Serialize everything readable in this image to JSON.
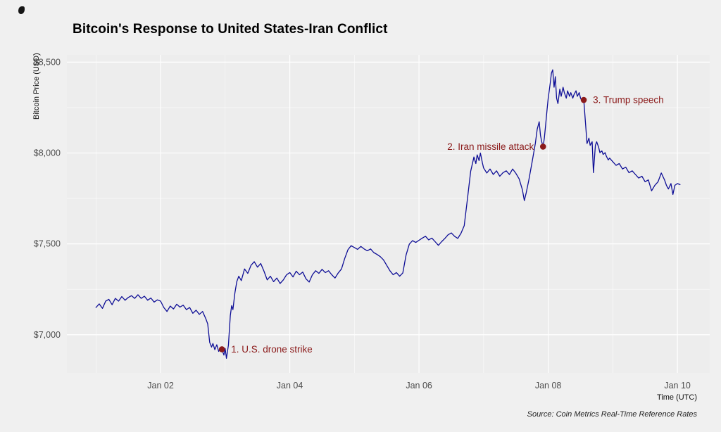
{
  "chart_data": {
    "type": "line",
    "title": "Bitcoin's Response to United States-Iran Conflict",
    "xlabel": "Time (UTC)",
    "ylabel": "Bitcoin Price (USD)",
    "caption": "Source: Coin Metrics Real-Time Reference Rates",
    "x_domain": [
      0.55,
      10.5
    ],
    "y_domain": [
      6790,
      8540
    ],
    "x_ticks": [
      {
        "value": 2,
        "label": "Jan 02"
      },
      {
        "value": 4,
        "label": "Jan 04"
      },
      {
        "value": 6,
        "label": "Jan 06"
      },
      {
        "value": 8,
        "label": "Jan 08"
      },
      {
        "value": 10,
        "label": "Jan 10"
      }
    ],
    "x_minor_ticks": [
      1,
      3,
      5,
      7,
      9
    ],
    "y_ticks": [
      {
        "value": 7000,
        "label": "$7,000"
      },
      {
        "value": 7500,
        "label": "$7,500"
      },
      {
        "value": 8000,
        "label": "$8,000"
      },
      {
        "value": 8500,
        "label": "$8,500"
      }
    ],
    "y_minor_ticks": [
      7250,
      7750,
      8250
    ],
    "grid": true,
    "legend": "none",
    "panel_color": "#EDEDED",
    "grid_color": "#FFFFFF",
    "tick_label_color": "#4D4D4D",
    "line_color": "#0E0E96",
    "annotation_color": "#8B1A1A",
    "series": [
      {
        "name": "Bitcoin price (USD)",
        "points": [
          [
            1.0,
            7150
          ],
          [
            1.05,
            7170
          ],
          [
            1.1,
            7145
          ],
          [
            1.15,
            7185
          ],
          [
            1.2,
            7195
          ],
          [
            1.25,
            7165
          ],
          [
            1.3,
            7200
          ],
          [
            1.35,
            7185
          ],
          [
            1.4,
            7210
          ],
          [
            1.45,
            7190
          ],
          [
            1.5,
            7205
          ],
          [
            1.55,
            7215
          ],
          [
            1.6,
            7200
          ],
          [
            1.65,
            7220
          ],
          [
            1.7,
            7200
          ],
          [
            1.75,
            7212
          ],
          [
            1.8,
            7190
          ],
          [
            1.85,
            7202
          ],
          [
            1.9,
            7180
          ],
          [
            1.95,
            7192
          ],
          [
            2.0,
            7185
          ],
          [
            2.05,
            7150
          ],
          [
            2.1,
            7128
          ],
          [
            2.15,
            7158
          ],
          [
            2.2,
            7142
          ],
          [
            2.25,
            7168
          ],
          [
            2.3,
            7152
          ],
          [
            2.35,
            7163
          ],
          [
            2.4,
            7138
          ],
          [
            2.45,
            7150
          ],
          [
            2.5,
            7118
          ],
          [
            2.55,
            7135
          ],
          [
            2.6,
            7112
          ],
          [
            2.65,
            7128
          ],
          [
            2.7,
            7088
          ],
          [
            2.73,
            7060
          ],
          [
            2.76,
            6958
          ],
          [
            2.79,
            6932
          ],
          [
            2.81,
            6952
          ],
          [
            2.84,
            6918
          ],
          [
            2.87,
            6945
          ],
          [
            2.9,
            6908
          ],
          [
            2.93,
            6930
          ],
          [
            2.95,
            6920
          ],
          [
            2.98,
            6888
          ],
          [
            3.0,
            6924
          ],
          [
            3.02,
            6870
          ],
          [
            3.05,
            6942
          ],
          [
            3.08,
            7105
          ],
          [
            3.1,
            7160
          ],
          [
            3.12,
            7138
          ],
          [
            3.15,
            7230
          ],
          [
            3.18,
            7292
          ],
          [
            3.21,
            7322
          ],
          [
            3.25,
            7298
          ],
          [
            3.3,
            7362
          ],
          [
            3.35,
            7338
          ],
          [
            3.4,
            7382
          ],
          [
            3.45,
            7402
          ],
          [
            3.5,
            7372
          ],
          [
            3.55,
            7392
          ],
          [
            3.6,
            7350
          ],
          [
            3.65,
            7302
          ],
          [
            3.7,
            7322
          ],
          [
            3.75,
            7292
          ],
          [
            3.8,
            7312
          ],
          [
            3.85,
            7282
          ],
          [
            3.9,
            7302
          ],
          [
            3.95,
            7330
          ],
          [
            4.0,
            7342
          ],
          [
            4.05,
            7318
          ],
          [
            4.1,
            7350
          ],
          [
            4.15,
            7330
          ],
          [
            4.2,
            7345
          ],
          [
            4.25,
            7308
          ],
          [
            4.3,
            7290
          ],
          [
            4.35,
            7330
          ],
          [
            4.4,
            7352
          ],
          [
            4.45,
            7338
          ],
          [
            4.5,
            7360
          ],
          [
            4.55,
            7342
          ],
          [
            4.6,
            7352
          ],
          [
            4.65,
            7330
          ],
          [
            4.7,
            7312
          ],
          [
            4.75,
            7340
          ],
          [
            4.8,
            7362
          ],
          [
            4.85,
            7420
          ],
          [
            4.9,
            7468
          ],
          [
            4.95,
            7490
          ],
          [
            5.0,
            7480
          ],
          [
            5.05,
            7470
          ],
          [
            5.1,
            7486
          ],
          [
            5.15,
            7472
          ],
          [
            5.2,
            7462
          ],
          [
            5.25,
            7472
          ],
          [
            5.3,
            7452
          ],
          [
            5.35,
            7442
          ],
          [
            5.4,
            7430
          ],
          [
            5.45,
            7412
          ],
          [
            5.5,
            7382
          ],
          [
            5.55,
            7352
          ],
          [
            5.6,
            7330
          ],
          [
            5.65,
            7342
          ],
          [
            5.7,
            7322
          ],
          [
            5.75,
            7340
          ],
          [
            5.8,
            7438
          ],
          [
            5.85,
            7498
          ],
          [
            5.9,
            7518
          ],
          [
            5.95,
            7508
          ],
          [
            6.0,
            7520
          ],
          [
            6.05,
            7532
          ],
          [
            6.1,
            7542
          ],
          [
            6.15,
            7522
          ],
          [
            6.2,
            7532
          ],
          [
            6.25,
            7512
          ],
          [
            6.3,
            7492
          ],
          [
            6.35,
            7512
          ],
          [
            6.4,
            7530
          ],
          [
            6.45,
            7550
          ],
          [
            6.5,
            7560
          ],
          [
            6.55,
            7542
          ],
          [
            6.6,
            7530
          ],
          [
            6.65,
            7558
          ],
          [
            6.7,
            7600
          ],
          [
            6.75,
            7748
          ],
          [
            6.8,
            7900
          ],
          [
            6.85,
            7978
          ],
          [
            6.88,
            7942
          ],
          [
            6.9,
            7990
          ],
          [
            6.93,
            7958
          ],
          [
            6.95,
            8000
          ],
          [
            6.98,
            7948
          ],
          [
            7.0,
            7918
          ],
          [
            7.05,
            7890
          ],
          [
            7.1,
            7912
          ],
          [
            7.15,
            7882
          ],
          [
            7.2,
            7902
          ],
          [
            7.25,
            7872
          ],
          [
            7.3,
            7892
          ],
          [
            7.35,
            7902
          ],
          [
            7.4,
            7882
          ],
          [
            7.45,
            7912
          ],
          [
            7.5,
            7888
          ],
          [
            7.55,
            7858
          ],
          [
            7.6,
            7798
          ],
          [
            7.63,
            7738
          ],
          [
            7.66,
            7782
          ],
          [
            7.7,
            7852
          ],
          [
            7.75,
            7950
          ],
          [
            7.8,
            8052
          ],
          [
            7.83,
            8132
          ],
          [
            7.86,
            8172
          ],
          [
            7.88,
            8098
          ],
          [
            7.9,
            8062
          ],
          [
            7.92,
            8035
          ],
          [
            7.94,
            8082
          ],
          [
            7.96,
            8152
          ],
          [
            7.98,
            8232
          ],
          [
            8.0,
            8302
          ],
          [
            8.03,
            8382
          ],
          [
            8.05,
            8440
          ],
          [
            8.07,
            8458
          ],
          [
            8.09,
            8362
          ],
          [
            8.11,
            8420
          ],
          [
            8.13,
            8302
          ],
          [
            8.15,
            8272
          ],
          [
            8.18,
            8352
          ],
          [
            8.2,
            8312
          ],
          [
            8.23,
            8362
          ],
          [
            8.25,
            8332
          ],
          [
            8.28,
            8302
          ],
          [
            8.3,
            8342
          ],
          [
            8.33,
            8312
          ],
          [
            8.35,
            8332
          ],
          [
            8.38,
            8302
          ],
          [
            8.4,
            8322
          ],
          [
            8.43,
            8342
          ],
          [
            8.45,
            8312
          ],
          [
            8.48,
            8332
          ],
          [
            8.5,
            8302
          ],
          [
            8.53,
            8282
          ],
          [
            8.55,
            8292
          ],
          [
            8.58,
            8152
          ],
          [
            8.6,
            8052
          ],
          [
            8.63,
            8082
          ],
          [
            8.65,
            8042
          ],
          [
            8.68,
            8062
          ],
          [
            8.7,
            7892
          ],
          [
            8.73,
            8042
          ],
          [
            8.75,
            8062
          ],
          [
            8.78,
            8032
          ],
          [
            8.8,
            8002
          ],
          [
            8.83,
            8012
          ],
          [
            8.85,
            7992
          ],
          [
            8.88,
            8002
          ],
          [
            8.9,
            7982
          ],
          [
            8.93,
            7962
          ],
          [
            8.95,
            7972
          ],
          [
            9.0,
            7952
          ],
          [
            9.05,
            7932
          ],
          [
            9.1,
            7942
          ],
          [
            9.15,
            7912
          ],
          [
            9.2,
            7922
          ],
          [
            9.25,
            7892
          ],
          [
            9.3,
            7902
          ],
          [
            9.35,
            7882
          ],
          [
            9.4,
            7862
          ],
          [
            9.45,
            7872
          ],
          [
            9.5,
            7842
          ],
          [
            9.55,
            7852
          ],
          [
            9.6,
            7792
          ],
          [
            9.65,
            7822
          ],
          [
            9.7,
            7842
          ],
          [
            9.75,
            7890
          ],
          [
            9.8,
            7852
          ],
          [
            9.83,
            7822
          ],
          [
            9.86,
            7802
          ],
          [
            9.9,
            7832
          ],
          [
            9.93,
            7772
          ],
          [
            9.96,
            7822
          ],
          [
            10.0,
            7832
          ],
          [
            10.04,
            7826
          ]
        ]
      }
    ],
    "annotations": [
      {
        "label": "1. U.S. drone strike",
        "x": 2.95,
        "y": 6920,
        "side": "right"
      },
      {
        "label": "2. Iran missile attack",
        "x": 7.92,
        "y": 8035,
        "side": "left"
      },
      {
        "label": "3. Trump speech",
        "x": 8.55,
        "y": 8292,
        "side": "right"
      }
    ]
  }
}
